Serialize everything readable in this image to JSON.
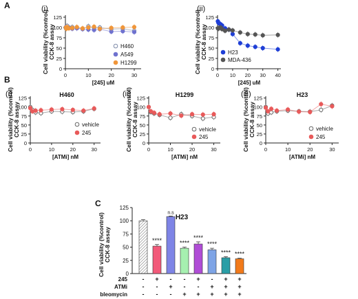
{
  "figure": {
    "panel_A": "A",
    "panel_B": "B",
    "panel_C": "C",
    "sub_i": "(i)",
    "sub_ii": "(ii)",
    "sub_iii": "(iii)"
  },
  "chart_data": [
    {
      "id": "A-i",
      "type": "line",
      "xlabel": "[245] uM",
      "ylabel": [
        "Cell viability (%control)",
        "CCK-8 assay"
      ],
      "xlim": [
        0,
        33
      ],
      "ylim": [
        0,
        130
      ],
      "xticks": [
        0,
        10,
        20,
        30
      ],
      "yticks": [
        0,
        25,
        50,
        75,
        100,
        125
      ],
      "legend_position": "bottom-right",
      "series": [
        {
          "name": "H460",
          "color": "#7d8aa8",
          "marker": "open-circle",
          "x": [
            0.2,
            0.4,
            0.8,
            1.5,
            3,
            5,
            7.5,
            10,
            12.5,
            15,
            20,
            25,
            30
          ],
          "y": [
            98,
            102,
            104,
            100,
            101,
            100,
            97,
            103,
            99,
            100,
            96,
            97,
            92
          ]
        },
        {
          "name": "A549",
          "color": "#6f72cf",
          "marker": "circle",
          "x": [
            0.2,
            0.4,
            0.8,
            1.5,
            3,
            5,
            7.5,
            10,
            12.5,
            15,
            20,
            25,
            30
          ],
          "y": [
            101,
            99,
            100,
            99,
            97,
            98,
            96,
            95,
            94,
            96,
            90,
            91,
            89
          ]
        },
        {
          "name": "H1299",
          "color": "#f0963a",
          "marker": "circle",
          "x": [
            0.2,
            0.4,
            0.8,
            1.5,
            3,
            5,
            7.5,
            10,
            12.5,
            15,
            20,
            25,
            30
          ],
          "y": [
            100,
            97,
            101,
            98,
            99,
            101,
            98,
            100,
            102,
            97,
            99,
            100,
            101
          ]
        }
      ]
    },
    {
      "id": "A-ii",
      "type": "line",
      "xlabel": "[245] uM",
      "ylabel": [
        "Cell viability (%control)",
        "CCK-8 assay"
      ],
      "xlim": [
        0,
        42
      ],
      "ylim": [
        0,
        130
      ],
      "xticks": [
        0,
        10,
        20,
        30,
        40
      ],
      "yticks": [
        0,
        25,
        50,
        75,
        100,
        125
      ],
      "legend_position": "bottom-left",
      "series": [
        {
          "name": "H23",
          "color": "#1f3fd6",
          "marker": "circle",
          "x": [
            0.2,
            0.5,
            1,
            2,
            3,
            5,
            7.5,
            10,
            15,
            20,
            25,
            30,
            40
          ],
          "y": [
            115,
            112,
            110,
            108,
            105,
            98,
            95,
            84,
            62,
            56,
            53,
            50,
            47
          ]
        },
        {
          "name": "MDA-436",
          "color": "#555555",
          "marker": "circle",
          "x": [
            0.2,
            0.5,
            1,
            2,
            3,
            5,
            7.5,
            10,
            15,
            20,
            25,
            30,
            40
          ],
          "y": [
            98,
            97,
            99,
            100,
            96,
            92,
            95,
            93,
            88,
            84,
            83,
            81,
            82
          ]
        }
      ]
    },
    {
      "id": "B-i",
      "type": "line",
      "title": "H460",
      "xlabel": "[ATMi] nM",
      "ylabel": [
        "Cell viability (%control)",
        "CCK-8 assay"
      ],
      "xlim": [
        0,
        33
      ],
      "ylim": [
        0,
        130
      ],
      "xticks": [
        0,
        10,
        20,
        30
      ],
      "yticks": [
        0,
        25,
        50,
        75,
        100,
        125
      ],
      "legend_position": "bottom-right",
      "series": [
        {
          "name": "vehicle",
          "color": "#666666",
          "marker": "open-circle",
          "x": [
            0,
            1,
            2.5,
            5,
            10,
            15,
            20,
            25,
            30
          ],
          "y": [
            100,
            92,
            85,
            83,
            88,
            87,
            86,
            88,
            95
          ]
        },
        {
          "name": "245",
          "color": "#e85a5a",
          "marker": "circle",
          "x": [
            0,
            1,
            2.5,
            5,
            10,
            15,
            20,
            25,
            30
          ],
          "y": [
            97,
            88,
            90,
            91,
            93,
            94,
            92,
            90,
            96
          ]
        }
      ]
    },
    {
      "id": "B-ii",
      "type": "line",
      "title": "H1299",
      "xlabel": "[ATMi] nM",
      "ylabel": [
        "Cell viability (%control)",
        "CCK-8 assay"
      ],
      "xlim": [
        0,
        33
      ],
      "ylim": [
        0,
        130
      ],
      "xticks": [
        0,
        10,
        20,
        30
      ],
      "yticks": [
        0,
        25,
        50,
        75,
        100,
        125
      ],
      "legend_position": "bottom-right",
      "series": [
        {
          "name": "vehicle",
          "color": "#666666",
          "marker": "open-circle",
          "x": [
            0,
            1,
            2.5,
            5,
            10,
            15,
            20,
            25,
            30
          ],
          "y": [
            100,
            86,
            82,
            78,
            70,
            80,
            75,
            68,
            72
          ]
        },
        {
          "name": "245",
          "color": "#e85a5a",
          "marker": "circle",
          "x": [
            0,
            1,
            2.5,
            5,
            10,
            15,
            20,
            25,
            30
          ],
          "y": [
            100,
            88,
            84,
            80,
            82,
            76,
            80,
            79,
            80
          ]
        }
      ]
    },
    {
      "id": "B-iii",
      "type": "line",
      "title": "H23",
      "xlabel": "[ATMi] nM",
      "ylabel": [
        "Cell viability (%control)",
        "CCK-8 assay"
      ],
      "xlim": [
        0,
        33
      ],
      "ylim": [
        0,
        130
      ],
      "xticks": [
        0,
        10,
        20,
        30
      ],
      "yticks": [
        0,
        25,
        50,
        75,
        100,
        125
      ],
      "legend_position": "bottom-right",
      "series": [
        {
          "name": "vehicle",
          "color": "#666666",
          "marker": "open-circle",
          "x": [
            0,
            1,
            2.5,
            5,
            10,
            15,
            20,
            25,
            30
          ],
          "y": [
            100,
            82,
            85,
            88,
            90,
            88,
            87,
            92,
            104
          ]
        },
        {
          "name": "245",
          "color": "#e85a5a",
          "marker": "circle",
          "x": [
            0,
            1,
            2.5,
            5,
            10,
            15,
            20,
            25,
            30
          ],
          "y": [
            98,
            88,
            95,
            90,
            93,
            87,
            86,
            108,
            102
          ]
        }
      ]
    },
    {
      "id": "C",
      "type": "bar",
      "title": "H23",
      "ylabel": [
        "Cell viability (%control)",
        "CCK-8 assay"
      ],
      "ylim": [
        0,
        125
      ],
      "yticks": [
        0,
        25,
        50,
        75,
        100,
        125
      ],
      "row_labels": [
        "245",
        "ATMi",
        "bleomycin"
      ],
      "conditions": [
        [
          "-",
          "-",
          "-"
        ],
        [
          "+",
          "-",
          "-"
        ],
        [
          "-",
          "+",
          "-"
        ],
        [
          "-",
          "-",
          "+"
        ],
        [
          "+",
          "-",
          "+"
        ],
        [
          "-",
          "+",
          "+"
        ],
        [
          "+",
          "+",
          "+"
        ],
        [
          "+",
          "+",
          "+"
        ]
      ],
      "values": [
        100,
        52,
        108,
        48,
        56,
        45,
        30,
        28
      ],
      "errors": [
        2,
        3,
        1,
        2,
        4,
        3,
        2,
        1
      ],
      "colors": [
        "#ffffff",
        "#f25a7a",
        "#7e84e6",
        "#a6f0b0",
        "#b04dd6",
        "#7ea4e6",
        "#2a9ea6",
        "#f27a1a"
      ],
      "significance": [
        "",
        "****",
        "n.s",
        "****",
        "****",
        "****",
        "****",
        "****"
      ],
      "significance_colors": [
        "",
        "#e0207a",
        "#6a6ad8",
        "#22b070",
        "#b020c0",
        "#4a88e0",
        "#1a7a80",
        "#f06a10"
      ]
    }
  ]
}
